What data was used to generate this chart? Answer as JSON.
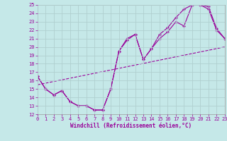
{
  "xlabel": "Windchill (Refroidissement éolien,°C)",
  "xlim": [
    0,
    23
  ],
  "ylim": [
    12,
    25
  ],
  "xticks": [
    0,
    1,
    2,
    3,
    4,
    5,
    6,
    7,
    8,
    9,
    10,
    11,
    12,
    13,
    14,
    15,
    16,
    17,
    18,
    19,
    20,
    21,
    22,
    23
  ],
  "yticks": [
    12,
    13,
    14,
    15,
    16,
    17,
    18,
    19,
    20,
    21,
    22,
    23,
    24,
    25
  ],
  "bg_color": "#c5e8e8",
  "grid_color": "#b0d0d0",
  "line_color": "#990099",
  "line1_x": [
    0,
    1,
    2,
    3,
    4,
    5,
    6,
    7,
    8,
    9,
    10,
    11,
    12,
    13,
    14,
    15,
    16,
    17,
    18,
    19,
    20,
    21,
    22,
    23
  ],
  "line1_y": [
    16.5,
    15.0,
    14.3,
    14.8,
    13.5,
    13.0,
    13.0,
    12.5,
    12.5,
    15.0,
    19.5,
    20.8,
    21.5,
    18.5,
    19.8,
    21.0,
    21.8,
    23.0,
    22.5,
    25.0,
    25.0,
    24.5,
    22.0,
    21.0
  ],
  "line2_x": [
    0,
    1,
    2,
    3,
    4,
    5,
    6,
    7,
    8,
    9,
    10,
    11,
    12,
    13,
    14,
    15,
    16,
    17,
    18,
    19,
    20,
    21,
    22,
    23
  ],
  "line2_y": [
    16.5,
    15.0,
    14.3,
    14.8,
    13.5,
    13.0,
    13.0,
    12.5,
    12.5,
    15.0,
    19.5,
    21.0,
    21.5,
    18.5,
    19.8,
    21.5,
    22.3,
    23.5,
    24.5,
    25.0,
    25.0,
    24.8,
    22.2,
    21.0
  ],
  "line3_x": [
    0,
    23
  ],
  "line3_y": [
    15.5,
    20.0
  ],
  "figsize": [
    3.2,
    2.0
  ],
  "dpi": 100
}
